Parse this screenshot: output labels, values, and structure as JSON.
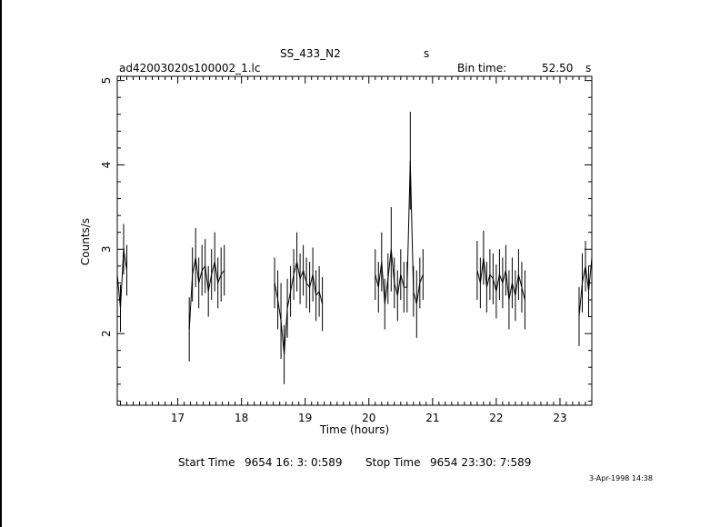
{
  "header": {
    "title": "SS_433_N2",
    "title_unit": "s",
    "filename": "ad42003020s100002_1.lc",
    "bin_label": "Bin time:",
    "bin_value": "52.50",
    "bin_unit": "s"
  },
  "footer": {
    "start_label": "Start Time",
    "start_value": "9654  16: 3: 0:589",
    "stop_label": "Stop Time",
    "stop_value": "9654  23:30: 7:589",
    "datestamp": "3-Apr-1998 14:38"
  },
  "chart_data": {
    "type": "line",
    "title": "SS_433_N2",
    "xlabel": "Time (hours)",
    "ylabel": "Counts/s",
    "xlim": [
      16.05,
      23.5
    ],
    "ylim": [
      1.15,
      5.05
    ],
    "xticks": [
      17,
      18,
      19,
      20,
      21,
      22,
      23
    ],
    "yticks": [
      2,
      3,
      4,
      5
    ],
    "grid": false,
    "segments": [
      {
        "x": [
          16.05,
          16.1,
          16.15,
          16.2
        ],
        "y": [
          2.7,
          2.3,
          3.0,
          2.75
        ],
        "err": [
          0.28,
          0.28,
          0.3,
          0.3
        ]
      },
      {
        "x": [
          17.18,
          17.23,
          17.28,
          17.33,
          17.38,
          17.43,
          17.48,
          17.53,
          17.58,
          17.63,
          17.68,
          17.73
        ],
        "y": [
          2.05,
          2.7,
          2.9,
          2.6,
          2.75,
          2.8,
          2.5,
          2.7,
          2.85,
          2.6,
          2.7,
          2.75
        ],
        "err": [
          0.38,
          0.32,
          0.35,
          0.3,
          0.3,
          0.32,
          0.3,
          0.3,
          0.35,
          0.3,
          0.32,
          0.3
        ]
      },
      {
        "x": [
          18.52,
          18.57,
          18.62,
          18.67,
          18.72,
          18.77,
          18.82,
          18.87,
          18.92,
          18.97,
          19.02,
          19.07,
          19.12,
          19.17,
          19.22,
          19.27
        ],
        "y": [
          2.6,
          2.4,
          2.15,
          1.75,
          2.3,
          2.5,
          2.7,
          2.85,
          2.65,
          2.75,
          2.6,
          2.55,
          2.7,
          2.45,
          2.5,
          2.35
        ],
        "err": [
          0.3,
          0.35,
          0.45,
          0.35,
          0.35,
          0.3,
          0.3,
          0.35,
          0.3,
          0.3,
          0.3,
          0.3,
          0.32,
          0.3,
          0.3,
          0.32
        ]
      },
      {
        "x": [
          20.1,
          20.15,
          20.2,
          20.25,
          20.3,
          20.35,
          20.4,
          20.45,
          20.5,
          20.55,
          20.6,
          20.65,
          20.7,
          20.75,
          20.8,
          20.85
        ],
        "y": [
          2.7,
          2.55,
          2.85,
          2.35,
          2.65,
          3.0,
          2.6,
          2.45,
          2.7,
          2.55,
          2.55,
          4.05,
          2.5,
          2.35,
          2.6,
          2.7
        ],
        "err": [
          0.3,
          0.3,
          0.35,
          0.3,
          0.3,
          0.5,
          0.3,
          0.3,
          0.3,
          0.3,
          0.3,
          0.58,
          0.3,
          0.4,
          0.3,
          0.3
        ]
      },
      {
        "x": [
          21.7,
          21.75,
          21.8,
          21.85,
          21.9,
          21.95,
          22.0,
          22.05,
          22.1,
          22.15,
          22.2,
          22.25,
          22.3,
          22.35,
          22.4,
          22.45
        ],
        "y": [
          2.75,
          2.6,
          2.9,
          2.55,
          2.7,
          2.65,
          2.5,
          2.7,
          2.6,
          2.75,
          2.4,
          2.6,
          2.45,
          2.7,
          2.55,
          2.4
        ],
        "err": [
          0.35,
          0.3,
          0.32,
          0.3,
          0.3,
          0.3,
          0.32,
          0.3,
          0.3,
          0.3,
          0.35,
          0.3,
          0.3,
          0.3,
          0.3,
          0.35
        ]
      },
      {
        "x": [
          23.3,
          23.35,
          23.4,
          23.45,
          23.5
        ],
        "y": [
          2.2,
          2.6,
          2.8,
          2.5,
          2.9
        ],
        "err": [
          0.35,
          0.35,
          0.3,
          0.3,
          0.35
        ]
      }
    ]
  }
}
